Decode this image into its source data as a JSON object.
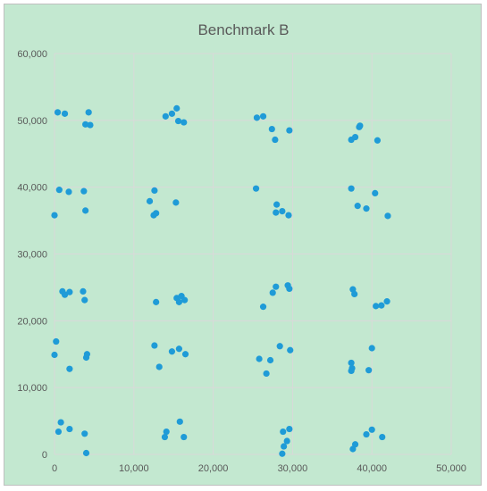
{
  "background_color": "#c3e8d0",
  "gridline_color": "#d9d9d9",
  "point_color": "#1f9bd7",
  "chart_data": {
    "type": "scatter",
    "title": "Benchmark B",
    "xlabel": "",
    "ylabel": "",
    "xlim": [
      0,
      50000
    ],
    "ylim": [
      0,
      60000
    ],
    "x_ticks": [
      0,
      10000,
      20000,
      30000,
      40000,
      50000
    ],
    "y_ticks": [
      0,
      10000,
      20000,
      30000,
      40000,
      50000,
      60000
    ],
    "x_tick_labels": [
      "0",
      "10,000",
      "20,000",
      "30,000",
      "40,000",
      "50,000"
    ],
    "y_tick_labels": [
      "0",
      "10,000",
      "20,000",
      "30,000",
      "40,000",
      "50,000",
      "60,000"
    ],
    "grid": true,
    "legend": "none",
    "series": [
      {
        "points": [
          [
            400,
            51200
          ],
          [
            1300,
            51000
          ],
          [
            3900,
            49400
          ],
          [
            4300,
            51200
          ],
          [
            4500,
            49300
          ],
          [
            14000,
            50600
          ],
          [
            14800,
            51000
          ],
          [
            15400,
            51800
          ],
          [
            15600,
            49900
          ],
          [
            16300,
            49700
          ],
          [
            25500,
            50400
          ],
          [
            26300,
            50600
          ],
          [
            27400,
            48700
          ],
          [
            27800,
            47100
          ],
          [
            29600,
            48500
          ],
          [
            37400,
            47100
          ],
          [
            37900,
            47500
          ],
          [
            38400,
            49000
          ],
          [
            38500,
            49200
          ],
          [
            40700,
            47000
          ],
          [
            0,
            35800
          ],
          [
            600,
            39600
          ],
          [
            1800,
            39300
          ],
          [
            3700,
            39400
          ],
          [
            3900,
            36500
          ],
          [
            12000,
            37900
          ],
          [
            12600,
            39500
          ],
          [
            12500,
            35800
          ],
          [
            12800,
            36100
          ],
          [
            15300,
            37700
          ],
          [
            25400,
            39800
          ],
          [
            28000,
            37400
          ],
          [
            27900,
            36200
          ],
          [
            28700,
            36400
          ],
          [
            29500,
            35800
          ],
          [
            37400,
            39800
          ],
          [
            38200,
            37200
          ],
          [
            39300,
            36800
          ],
          [
            40400,
            39100
          ],
          [
            42000,
            35700
          ],
          [
            1000,
            24400
          ],
          [
            1300,
            23900
          ],
          [
            1900,
            24300
          ],
          [
            3600,
            24400
          ],
          [
            3800,
            23100
          ],
          [
            12800,
            22800
          ],
          [
            15400,
            23400
          ],
          [
            15700,
            22800
          ],
          [
            16000,
            23700
          ],
          [
            16400,
            23100
          ],
          [
            26300,
            22100
          ],
          [
            27500,
            24200
          ],
          [
            27900,
            25100
          ],
          [
            29400,
            25300
          ],
          [
            29600,
            24800
          ],
          [
            37600,
            24700
          ],
          [
            37800,
            24000
          ],
          [
            40500,
            22200
          ],
          [
            41200,
            22300
          ],
          [
            41900,
            22900
          ],
          [
            200,
            16900
          ],
          [
            0,
            14900
          ],
          [
            1900,
            12800
          ],
          [
            4000,
            14500
          ],
          [
            4100,
            15000
          ],
          [
            12600,
            16300
          ],
          [
            13200,
            13100
          ],
          [
            14800,
            15400
          ],
          [
            15700,
            15800
          ],
          [
            16500,
            15000
          ],
          [
            25800,
            14300
          ],
          [
            26700,
            12100
          ],
          [
            27200,
            14100
          ],
          [
            28400,
            16200
          ],
          [
            29700,
            15600
          ],
          [
            37400,
            13700
          ],
          [
            37500,
            12900
          ],
          [
            37400,
            12500
          ],
          [
            39600,
            12600
          ],
          [
            40000,
            15900
          ],
          [
            500,
            3400
          ],
          [
            800,
            4800
          ],
          [
            1900,
            3800
          ],
          [
            3800,
            3100
          ],
          [
            4000,
            200
          ],
          [
            13900,
            2600
          ],
          [
            14100,
            3400
          ],
          [
            15800,
            4900
          ],
          [
            16300,
            2600
          ],
          [
            28700,
            100
          ],
          [
            28900,
            1200
          ],
          [
            28800,
            3400
          ],
          [
            29300,
            2000
          ],
          [
            29600,
            3800
          ],
          [
            37600,
            800
          ],
          [
            37900,
            1500
          ],
          [
            39300,
            3000
          ],
          [
            40000,
            3700
          ],
          [
            41300,
            2600
          ]
        ]
      }
    ]
  }
}
